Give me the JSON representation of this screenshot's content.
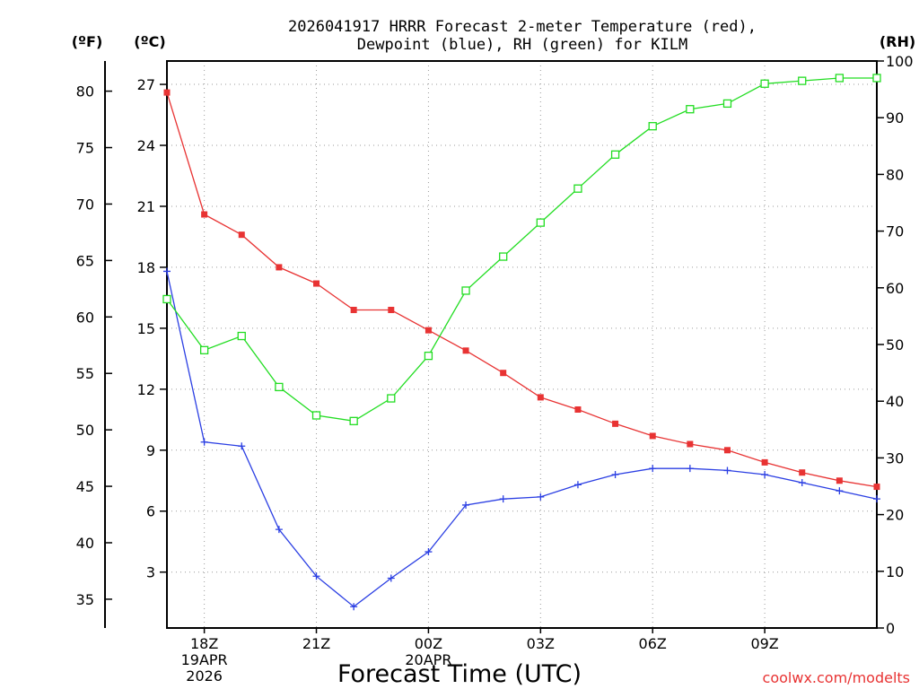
{
  "chart_data": {
    "type": "line",
    "title_line1": "2026041917 HRRR Forecast 2-meter Temperature (red),",
    "title_line2": "Dewpoint (blue), RH (green) for KILM",
    "xlabel": "Forecast Time (UTC)",
    "credit": "coolwx.com/modelts",
    "unit_f": "(ºF)",
    "unit_c": "(ºC)",
    "unit_rh": "(RH)",
    "hours": [
      17,
      18,
      19,
      20,
      21,
      22,
      23,
      24,
      25,
      26,
      27,
      28,
      29,
      30,
      31,
      32,
      33,
      34,
      35,
      36
    ],
    "x_range": [
      17,
      36
    ],
    "x_ticks": [
      {
        "hour": 18,
        "labels": [
          "18Z",
          "19APR",
          "2026"
        ]
      },
      {
        "hour": 21,
        "labels": [
          "21Z"
        ]
      },
      {
        "hour": 24,
        "labels": [
          "00Z",
          "20APR"
        ]
      },
      {
        "hour": 27,
        "labels": [
          "03Z"
        ]
      },
      {
        "hour": 30,
        "labels": [
          "06Z"
        ]
      },
      {
        "hour": 33,
        "labels": [
          "09Z"
        ]
      }
    ],
    "celsius_axis": {
      "range": [
        0.25,
        28.15
      ],
      "ticks": [
        3,
        6,
        9,
        12,
        15,
        18,
        21,
        24,
        27
      ]
    },
    "fahrenheit_axis": {
      "ticks": [
        35,
        40,
        45,
        50,
        55,
        60,
        65,
        70,
        75,
        80
      ]
    },
    "rh_axis": {
      "range": [
        0,
        100
      ],
      "ticks": [
        0,
        10,
        20,
        30,
        40,
        50,
        60,
        70,
        80,
        90,
        100
      ]
    },
    "series": [
      {
        "name": "Temperature",
        "color": "#e83333",
        "marker": "filled-square",
        "axis": "celsius",
        "values": [
          26.6,
          20.6,
          19.6,
          18.0,
          17.2,
          15.9,
          15.9,
          14.9,
          13.9,
          12.8,
          11.6,
          11.0,
          10.3,
          9.7,
          9.3,
          9.0,
          8.4,
          7.9,
          7.5,
          7.2
        ]
      },
      {
        "name": "Dewpoint",
        "color": "#2b3fe3",
        "marker": "plus",
        "axis": "celsius",
        "values": [
          17.8,
          9.4,
          9.2,
          5.1,
          2.8,
          1.3,
          2.7,
          4.0,
          6.3,
          6.6,
          6.7,
          7.3,
          7.8,
          8.1,
          8.1,
          8.0,
          7.8,
          7.4,
          7.0,
          6.6
        ]
      },
      {
        "name": "RH",
        "color": "#22dd22",
        "marker": "open-square",
        "axis": "rh",
        "values": [
          58,
          49,
          51.5,
          42.5,
          37.5,
          36.5,
          40.5,
          48,
          59.5,
          65.5,
          71.5,
          77.5,
          83.5,
          88.5,
          91.5,
          92.5,
          96,
          96.5,
          97,
          97
        ]
      }
    ]
  }
}
